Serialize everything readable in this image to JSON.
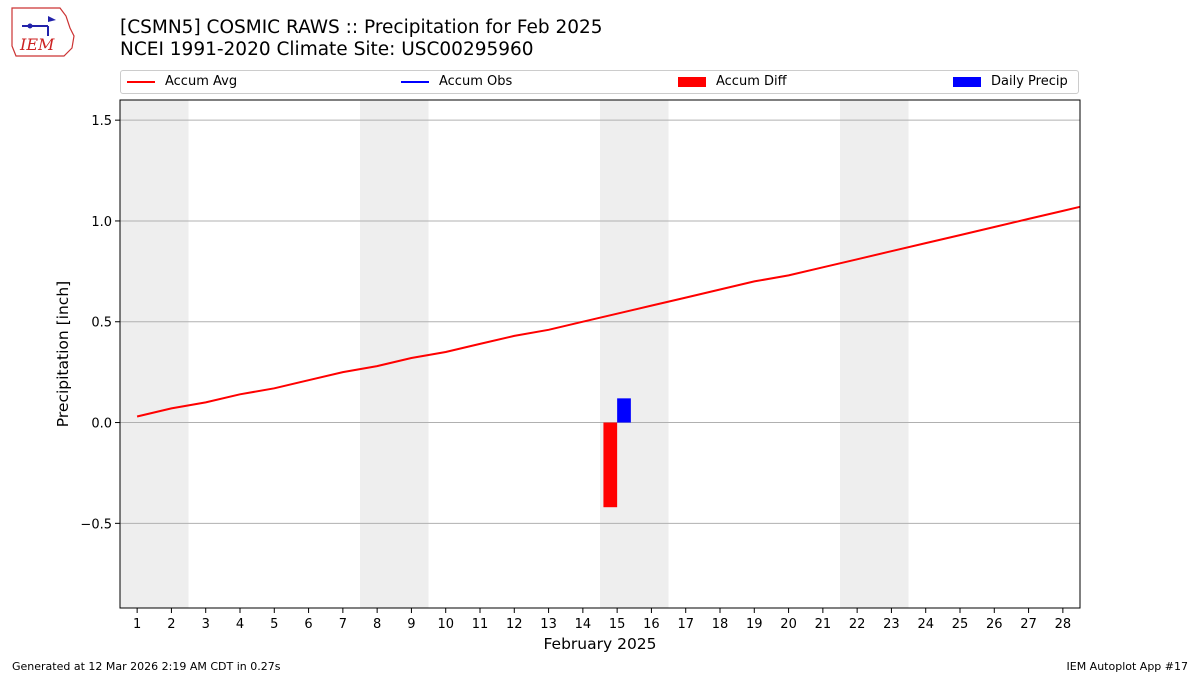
{
  "header": {
    "title_line1": "[CSMN5] COSMIC RAWS :: Precipitation for Feb 2025",
    "title_line2": "NCEI 1991-2020 Climate Site: USC00295960"
  },
  "logo": {
    "text": "IEM",
    "color": "#cc2222",
    "icon": "iem-logo-icon"
  },
  "legend": [
    {
      "label": "Accum Avg",
      "kind": "line",
      "color": "#ff0000"
    },
    {
      "label": "Accum Obs",
      "kind": "line",
      "color": "#0000ff"
    },
    {
      "label": "Accum Diff",
      "kind": "box",
      "color": "#ff0000"
    },
    {
      "label": "Daily Precip",
      "kind": "box",
      "color": "#0000ff"
    }
  ],
  "footer": {
    "left": "Generated at 12 Mar 2026 2:19 AM CDT in 0.27s",
    "right": "IEM Autoplot App #17"
  },
  "chart_data": {
    "type": "bar",
    "xlabel": "February 2025",
    "ylabel": "Precipitation [inch]",
    "xlim": [
      0.5,
      28.5
    ],
    "ylim": [
      -0.92,
      1.6
    ],
    "y_ticks": [
      -0.5,
      0.0,
      0.5,
      1.0,
      1.5
    ],
    "y_tick_labels": [
      "−0.5",
      "0.0",
      "0.5",
      "1.0",
      "1.5"
    ],
    "x_ticks": [
      1,
      2,
      3,
      4,
      5,
      6,
      7,
      8,
      9,
      10,
      11,
      12,
      13,
      14,
      15,
      16,
      17,
      18,
      19,
      20,
      21,
      22,
      23,
      24,
      25,
      26,
      27,
      28
    ],
    "grid": "horizontal",
    "weekend_shading": [
      [
        0.5,
        2.5
      ],
      [
        7.5,
        9.5
      ],
      [
        14.5,
        16.5
      ],
      [
        21.5,
        23.5
      ]
    ],
    "shade_color": "#eeeeee",
    "series": [
      {
        "name": "Accum Avg",
        "kind": "line",
        "color": "#ff0000",
        "x": [
          1,
          2,
          3,
          4,
          5,
          6,
          7,
          8,
          9,
          10,
          11,
          12,
          13,
          14,
          15,
          16,
          17,
          18,
          19,
          20,
          21,
          22,
          23,
          24,
          25,
          26,
          27,
          28,
          28.5
        ],
        "y": [
          0.03,
          0.07,
          0.1,
          0.14,
          0.17,
          0.21,
          0.25,
          0.28,
          0.32,
          0.35,
          0.39,
          0.43,
          0.46,
          0.5,
          0.54,
          0.58,
          0.62,
          0.66,
          0.7,
          0.73,
          0.77,
          0.81,
          0.85,
          0.89,
          0.93,
          0.97,
          1.01,
          1.05,
          1.07
        ]
      },
      {
        "name": "Accum Diff",
        "kind": "bar",
        "color": "#ff0000",
        "x": [
          15
        ],
        "offset": -0.2,
        "width": 0.4,
        "y": [
          -0.42
        ]
      },
      {
        "name": "Daily Precip",
        "kind": "bar",
        "color": "#0000ff",
        "x": [
          15
        ],
        "offset": 0.2,
        "width": 0.4,
        "y": [
          0.12
        ]
      }
    ]
  }
}
